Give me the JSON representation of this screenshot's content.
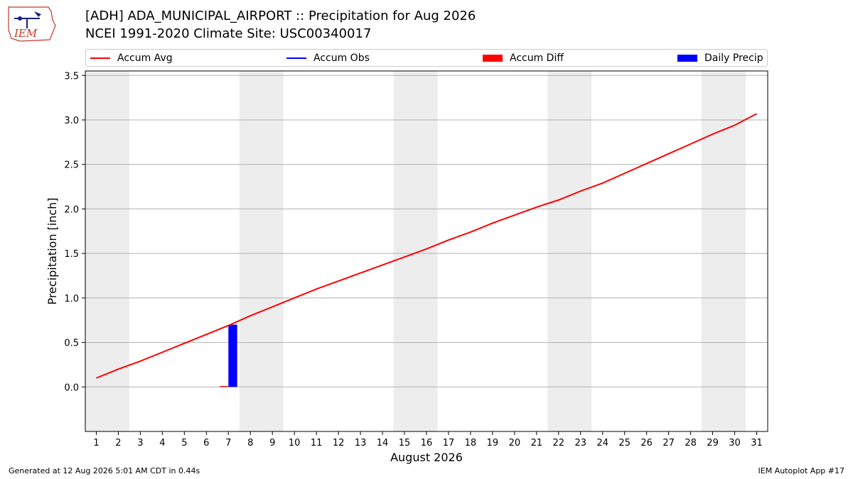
{
  "header": {
    "logo_text": "IEM",
    "title_line1": "[ADH] ADA_MUNICIPAL_AIRPORT :: Precipitation for Aug 2026",
    "title_line2": "NCEI 1991-2020 Climate Site: USC00340017"
  },
  "legend": {
    "items": [
      {
        "label": "Accum Avg",
        "color": "#ff0000",
        "kind": "line"
      },
      {
        "label": "Accum Obs",
        "color": "#0000ff",
        "kind": "line"
      },
      {
        "label": "Accum Diff",
        "color": "#ff0000",
        "kind": "box"
      },
      {
        "label": "Daily Precip",
        "color": "#0000ff",
        "kind": "box"
      }
    ]
  },
  "chart_data": {
    "type": "line",
    "xlabel": "August 2026",
    "ylabel": "Precipitation [inch]",
    "ylim": [
      -0.5,
      3.55
    ],
    "yticks": [
      0.0,
      0.5,
      1.0,
      1.5,
      2.0,
      2.5,
      3.0,
      3.5
    ],
    "ytick_labels": [
      "0.0",
      "0.5",
      "1.0",
      "1.5",
      "2.0",
      "2.5",
      "3.0",
      "3.5"
    ],
    "x": [
      1,
      2,
      3,
      4,
      5,
      6,
      7,
      8,
      9,
      10,
      11,
      12,
      13,
      14,
      15,
      16,
      17,
      18,
      19,
      20,
      21,
      22,
      23,
      24,
      25,
      26,
      27,
      28,
      29,
      30,
      31
    ],
    "xlim": [
      0.5,
      31.5
    ],
    "grid": "horizontal",
    "weekend_shading": [
      [
        0.5,
        2.5
      ],
      [
        7.5,
        9.5
      ],
      [
        14.5,
        16.5
      ],
      [
        21.5,
        23.5
      ],
      [
        28.5,
        30.5
      ]
    ],
    "weekend_color": "#ededed",
    "series": [
      {
        "name": "Accum Avg",
        "type": "line",
        "color": "#ff0000",
        "x": [
          1,
          2,
          3,
          4,
          5,
          6,
          7,
          8,
          9,
          10,
          11,
          12,
          13,
          14,
          15,
          16,
          17,
          18,
          19,
          20,
          21,
          22,
          23,
          24,
          25,
          26,
          27,
          28,
          29,
          30,
          31
        ],
        "values": [
          0.1,
          0.2,
          0.29,
          0.39,
          0.49,
          0.59,
          0.69,
          0.8,
          0.9,
          1.0,
          1.1,
          1.19,
          1.28,
          1.37,
          1.46,
          1.55,
          1.65,
          1.74,
          1.84,
          1.93,
          2.02,
          2.1,
          2.2,
          2.29,
          2.4,
          2.51,
          2.62,
          2.73,
          2.84,
          2.94,
          3.07
        ]
      },
      {
        "name": "Accum Diff",
        "type": "bar",
        "color": "#ff0000",
        "x": [
          6.8
        ],
        "values": [
          0.01
        ],
        "width": 0.4
      },
      {
        "name": "Daily Precip",
        "type": "bar",
        "color": "#0000ff",
        "x": [
          7.2
        ],
        "values": [
          0.7
        ],
        "width": 0.4
      }
    ]
  },
  "footer": {
    "left": "Generated at 12 Aug 2026 5:01 AM CDT in 0.44s",
    "right": "IEM Autoplot App #17"
  }
}
